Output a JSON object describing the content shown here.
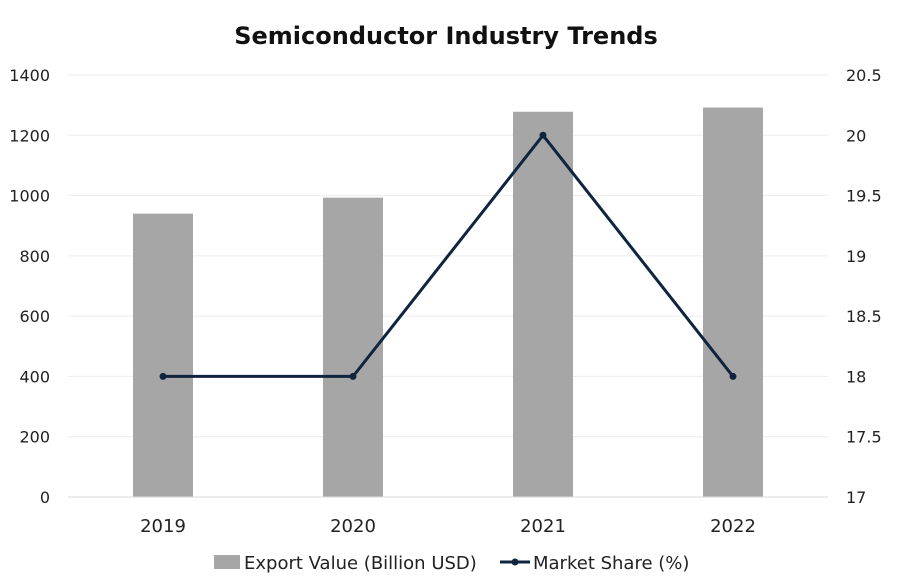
{
  "chart_data": {
    "type": "bar",
    "title": "Semiconductor Industry Trends",
    "categories": [
      "2019",
      "2020",
      "2021",
      "2022"
    ],
    "series": [
      {
        "name": "Export Value (Billion USD)",
        "type": "bar",
        "axis": "left",
        "color": "#a6a6a6",
        "values": [
          940,
          993,
          1278,
          1292
        ]
      },
      {
        "name": "Market Share (%)",
        "type": "line",
        "axis": "right",
        "color": "#0f243e",
        "values": [
          18,
          18,
          20,
          18
        ]
      }
    ],
    "y_left": {
      "lim": [
        0,
        1400
      ],
      "ticks": [
        "0",
        "200",
        "400",
        "600",
        "800",
        "1000",
        "1200",
        "1400"
      ]
    },
    "y_right": {
      "lim": [
        17,
        20.5
      ],
      "ticks": [
        "17",
        "17.5",
        "18",
        "18.5",
        "19",
        "19.5",
        "20",
        "20.5"
      ]
    },
    "grid": true,
    "legend_position": "bottom"
  }
}
